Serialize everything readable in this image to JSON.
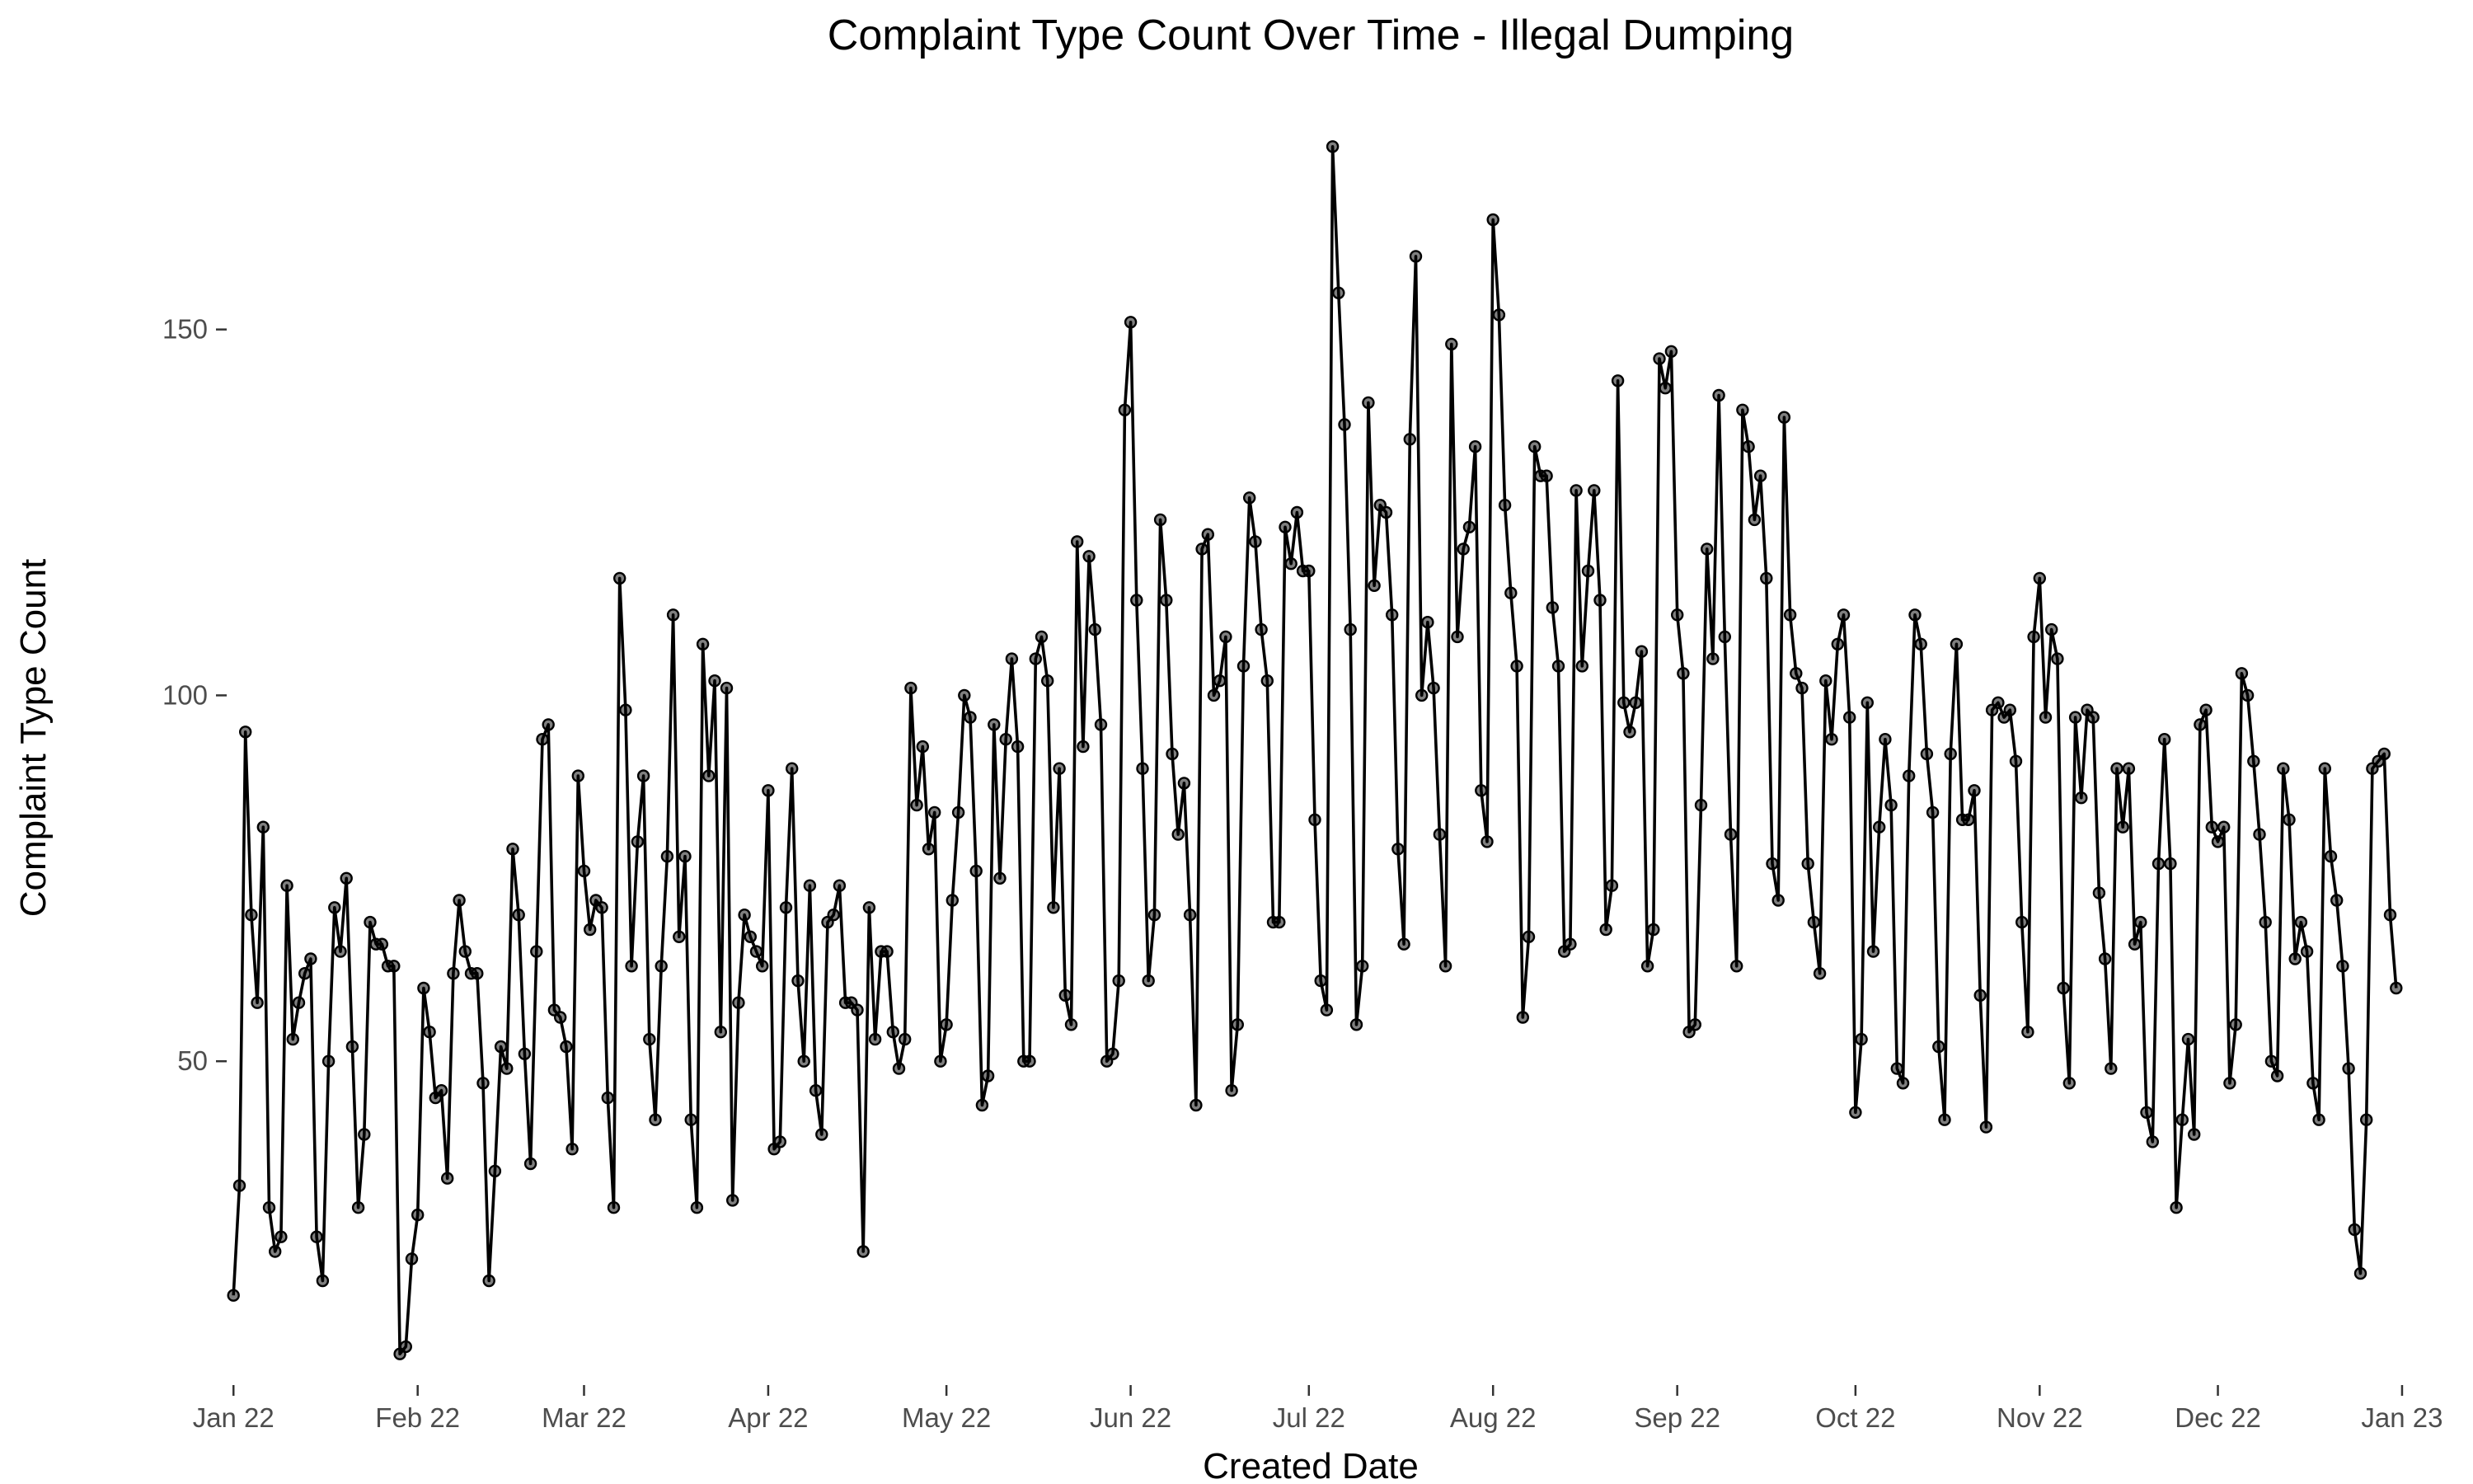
{
  "chart_data": {
    "type": "line",
    "title": "Complaint Type Count Over Time - Illegal Dumping",
    "xlabel": "Created Date",
    "ylabel": "Complaint Type Count",
    "x_start": "2022-01-01",
    "x_tick_labels": [
      "Jan 22",
      "Feb 22",
      "Mar 22",
      "Apr 22",
      "May 22",
      "Jun 22",
      "Jul 22",
      "Aug 22",
      "Sep 22",
      "Oct 22",
      "Nov 22",
      "Dec 22",
      "Jan 23"
    ],
    "x_ticks": [
      "2022-01-01",
      "2022-02-01",
      "2022-03-01",
      "2022-04-01",
      "2022-05-01",
      "2022-06-01",
      "2022-07-01",
      "2022-08-01",
      "2022-09-01",
      "2022-10-01",
      "2022-11-01",
      "2022-12-01",
      "2023-01-01"
    ],
    "y_ticks": [
      50,
      100,
      150
    ],
    "ylim": [
      8,
      177
    ],
    "xlim": [
      "2021-12-26",
      "2023-01-06"
    ],
    "grid": false,
    "x_unit": "day",
    "series": [
      {
        "color": "#000000",
        "values": [
          18,
          33,
          95,
          70,
          58,
          82,
          30,
          24,
          26,
          74,
          53,
          58,
          62,
          64,
          26,
          20,
          50,
          71,
          65,
          75,
          52,
          30,
          40,
          69,
          66,
          66,
          63,
          63,
          10,
          11,
          23,
          29,
          60,
          54,
          45,
          46,
          34,
          62,
          72,
          65,
          62,
          62,
          47,
          20,
          35,
          52,
          49,
          79,
          70,
          51,
          36,
          65,
          94,
          96,
          57,
          56,
          52,
          38,
          89,
          76,
          68,
          72,
          71,
          45,
          30,
          116,
          98,
          63,
          80,
          89,
          53,
          42,
          63,
          78,
          111,
          67,
          78,
          42,
          30,
          107,
          89,
          102,
          54,
          101,
          31,
          58,
          70,
          67,
          65,
          63,
          87,
          38,
          39,
          71,
          90,
          61,
          50,
          74,
          46,
          40,
          69,
          70,
          74,
          58,
          58,
          57,
          24,
          71,
          53,
          65,
          65,
          54,
          49,
          53,
          101,
          85,
          93,
          79,
          84,
          50,
          55,
          72,
          84,
          100,
          97,
          76,
          44,
          48,
          96,
          75,
          94,
          105,
          93,
          50,
          50,
          105,
          108,
          102,
          71,
          90,
          59,
          55,
          121,
          93,
          119,
          109,
          96,
          50,
          51,
          61,
          139,
          151,
          113,
          90,
          61,
          70,
          124,
          113,
          92,
          81,
          88,
          70,
          44,
          120,
          122,
          100,
          102,
          108,
          46,
          55,
          104,
          127,
          121,
          109,
          102,
          69,
          69,
          123,
          118,
          125,
          117,
          117,
          83,
          61,
          57,
          175,
          155,
          137,
          109,
          55,
          63,
          140,
          115,
          126,
          125,
          111,
          79,
          66,
          135,
          160,
          100,
          110,
          101,
          81,
          63,
          148,
          108,
          120,
          123,
          134,
          87,
          80,
          165,
          152,
          126,
          114,
          104,
          56,
          67,
          134,
          130,
          130,
          112,
          104,
          65,
          66,
          128,
          104,
          117,
          128,
          113,
          68,
          74,
          143,
          99,
          95,
          99,
          106,
          63,
          68,
          146,
          142,
          147,
          111,
          103,
          54,
          55,
          85,
          120,
          105,
          141,
          108,
          81,
          63,
          139,
          134,
          124,
          130,
          116,
          77,
          72,
          138,
          111,
          103,
          101,
          77,
          69,
          62,
          102,
          94,
          107,
          111,
          97,
          43,
          53,
          99,
          65,
          82,
          94,
          85,
          49,
          47,
          89,
          111,
          107,
          92,
          84,
          52,
          42,
          92,
          107,
          83,
          83,
          87,
          59,
          41,
          98,
          99,
          97,
          98,
          91,
          69,
          54,
          108,
          116,
          97,
          109,
          105,
          60,
          47,
          97,
          86,
          98,
          97,
          73,
          64,
          49,
          90,
          82,
          90,
          66,
          69,
          43,
          39,
          77,
          94,
          77,
          30,
          42,
          53,
          40,
          96,
          98,
          82,
          80,
          82,
          47,
          55,
          103,
          100,
          91,
          81,
          69,
          50,
          48,
          90,
          83,
          64,
          69,
          65,
          47,
          42,
          90,
          78,
          72,
          63,
          49,
          27,
          21,
          42,
          90,
          91,
          92,
          70,
          60
        ]
      }
    ]
  }
}
